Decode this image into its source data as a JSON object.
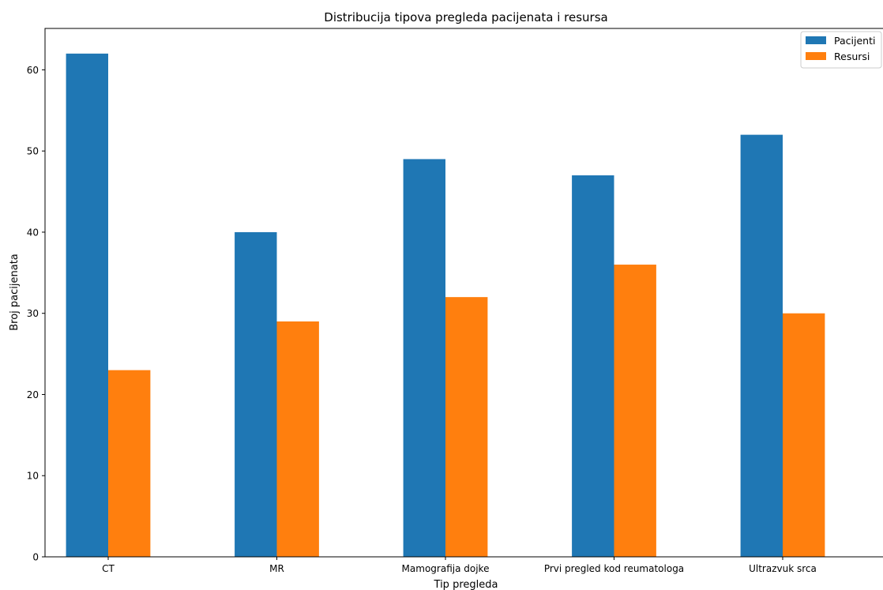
{
  "chart_data": {
    "type": "bar",
    "title": "Distribucija tipova pregleda pacijenata i resursa",
    "xlabel": "Tip pregleda",
    "ylabel": "Broj pacijenata",
    "categories": [
      "CT",
      "MR",
      "Mamografija dojke",
      "Prvi pregled kod reumatologa",
      "Ultrazvuk srca"
    ],
    "series": [
      {
        "name": "Pacijenti",
        "color": "#1f77b4",
        "values": [
          62,
          40,
          49,
          47,
          52
        ]
      },
      {
        "name": "Resursi",
        "color": "#ff7f0e",
        "values": [
          23,
          29,
          32,
          36,
          30
        ]
      }
    ],
    "ylim": [
      0,
      65.1
    ],
    "yticks": [
      0,
      10,
      20,
      30,
      40,
      50,
      60
    ],
    "grid": false,
    "legend_position": "top-right"
  }
}
